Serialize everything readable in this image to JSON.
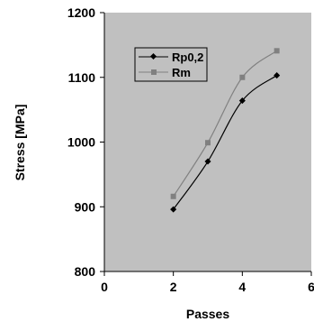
{
  "chart_data": {
    "type": "line",
    "title": "",
    "xlabel": "Passes",
    "ylabel": "Stress  [MPa]",
    "xlim": [
      0,
      6
    ],
    "ylim": [
      800,
      1200
    ],
    "xticks": [
      "0",
      "2",
      "4",
      "6"
    ],
    "yticks": [
      "800",
      "900",
      "1000",
      "1100",
      "1200"
    ],
    "grid": false,
    "plot_background": "#c0c0c0",
    "legend_position": "top-left",
    "series": [
      {
        "name": "Rp0,2",
        "color": "#000000",
        "marker": "diamond",
        "x": [
          2,
          3,
          4,
          5
        ],
        "y": [
          896,
          970,
          1064,
          1103
        ]
      },
      {
        "name": "Rm",
        "color": "#808080",
        "marker": "square",
        "x": [
          2,
          3,
          4,
          5
        ],
        "y": [
          916,
          999,
          1100,
          1141
        ]
      }
    ]
  }
}
